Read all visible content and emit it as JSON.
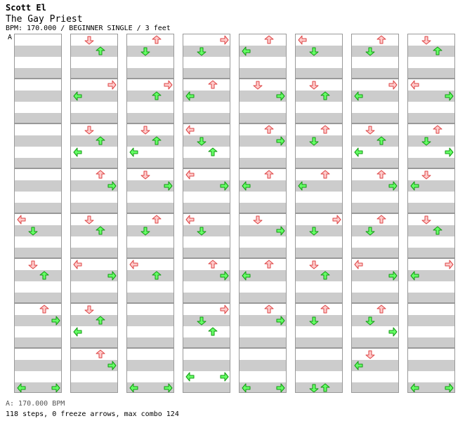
{
  "header": {
    "artist": "Scott El",
    "title": "The Gay Priest",
    "meta": "BPM: 170.000 / BEGINNER SINGLE / 3 feet"
  },
  "marker": "A",
  "footer": {
    "bpm_line": "A: 170.000 BPM",
    "stats_line": "118 steps, 0 freeze arrows, max combo 124"
  },
  "colors": {
    "red_fill": "#ffcccc",
    "red_stroke": "#dd4444",
    "green_fill": "#66ff66",
    "green_stroke": "#119911",
    "stripe": "#cccccc",
    "border": "#999999"
  },
  "chart_data": {
    "type": "table",
    "lanes": [
      "left",
      "down",
      "up",
      "right"
    ],
    "notes_description": "Step chart arranged in 8 columns of 8 measures; each note is [lane, row within measure 0-3, color]",
    "columns": [
      [
        [],
        [],
        [],
        [],
        [
          [
            "left",
            0,
            "red"
          ],
          [
            "down",
            1,
            "green"
          ]
        ],
        [
          [
            "down",
            0,
            "red"
          ],
          [
            "up",
            1,
            "green"
          ]
        ],
        [
          [
            "up",
            0,
            "red"
          ],
          [
            "right",
            1,
            "green"
          ]
        ],
        [
          [
            "left",
            3,
            "green"
          ],
          [
            "right",
            3,
            "green"
          ]
        ]
      ],
      [
        [
          [
            "down",
            0,
            "red"
          ],
          [
            "up",
            1,
            "green"
          ]
        ],
        [
          [
            "right",
            0,
            "red"
          ],
          [
            "left",
            1,
            "green"
          ]
        ],
        [
          [
            "down",
            0,
            "red"
          ],
          [
            "up",
            1,
            "green"
          ],
          [
            "left",
            2,
            "green"
          ]
        ],
        [
          [
            "up",
            0,
            "red"
          ],
          [
            "right",
            1,
            "green"
          ]
        ],
        [
          [
            "down",
            0,
            "red"
          ],
          [
            "up",
            1,
            "green"
          ]
        ],
        [
          [
            "left",
            0,
            "red"
          ],
          [
            "right",
            1,
            "green"
          ]
        ],
        [
          [
            "down",
            0,
            "red"
          ],
          [
            "up",
            1,
            "green"
          ],
          [
            "left",
            2,
            "green"
          ]
        ],
        [
          [
            "up",
            0,
            "red"
          ],
          [
            "right",
            1,
            "green"
          ]
        ]
      ],
      [
        [
          [
            "up",
            0,
            "red"
          ],
          [
            "down",
            1,
            "green"
          ]
        ],
        [
          [
            "right",
            0,
            "red"
          ],
          [
            "up",
            1,
            "green"
          ]
        ],
        [
          [
            "down",
            0,
            "red"
          ],
          [
            "up",
            1,
            "green"
          ],
          [
            "left",
            2,
            "green"
          ]
        ],
        [
          [
            "down",
            0,
            "red"
          ],
          [
            "right",
            1,
            "green"
          ]
        ],
        [
          [
            "up",
            0,
            "red"
          ],
          [
            "down",
            1,
            "green"
          ]
        ],
        [
          [
            "left",
            0,
            "red"
          ],
          [
            "up",
            1,
            "green"
          ]
        ],
        [],
        [
          [
            "left",
            3,
            "green"
          ],
          [
            "right",
            3,
            "green"
          ]
        ]
      ],
      [
        [
          [
            "right",
            0,
            "red"
          ],
          [
            "down",
            1,
            "green"
          ]
        ],
        [
          [
            "up",
            0,
            "red"
          ],
          [
            "left",
            1,
            "green"
          ]
        ],
        [
          [
            "left",
            0,
            "red"
          ],
          [
            "down",
            1,
            "green"
          ],
          [
            "up",
            2,
            "green"
          ]
        ],
        [
          [
            "left",
            0,
            "red"
          ],
          [
            "right",
            1,
            "green"
          ]
        ],
        [
          [
            "left",
            0,
            "red"
          ],
          [
            "down",
            1,
            "green"
          ]
        ],
        [
          [
            "up",
            0,
            "red"
          ],
          [
            "right",
            1,
            "green"
          ]
        ],
        [
          [
            "right",
            0,
            "red"
          ],
          [
            "down",
            1,
            "green"
          ],
          [
            "up",
            2,
            "green"
          ]
        ],
        [
          [
            "left",
            2,
            "green"
          ],
          [
            "right",
            2,
            "green"
          ]
        ]
      ],
      [
        [
          [
            "up",
            0,
            "red"
          ],
          [
            "left",
            1,
            "green"
          ]
        ],
        [
          [
            "down",
            0,
            "red"
          ],
          [
            "right",
            1,
            "green"
          ]
        ],
        [
          [
            "up",
            0,
            "red"
          ],
          [
            "right",
            1,
            "green"
          ]
        ],
        [
          [
            "up",
            0,
            "red"
          ],
          [
            "left",
            1,
            "green"
          ]
        ],
        [
          [
            "down",
            0,
            "red"
          ],
          [
            "right",
            1,
            "green"
          ]
        ],
        [
          [
            "up",
            0,
            "red"
          ],
          [
            "left",
            1,
            "green"
          ]
        ],
        [
          [
            "up",
            0,
            "red"
          ],
          [
            "right",
            1,
            "green"
          ]
        ],
        [
          [
            "left",
            3,
            "green"
          ],
          [
            "right",
            3,
            "green"
          ]
        ]
      ],
      [
        [
          [
            "left",
            0,
            "red"
          ],
          [
            "down",
            1,
            "green"
          ]
        ],
        [
          [
            "down",
            0,
            "red"
          ],
          [
            "up",
            1,
            "green"
          ]
        ],
        [
          [
            "up",
            0,
            "red"
          ],
          [
            "down",
            1,
            "green"
          ]
        ],
        [
          [
            "up",
            0,
            "red"
          ],
          [
            "left",
            1,
            "green"
          ]
        ],
        [
          [
            "right",
            0,
            "red"
          ],
          [
            "down",
            1,
            "green"
          ]
        ],
        [
          [
            "down",
            0,
            "red"
          ],
          [
            "up",
            1,
            "green"
          ]
        ],
        [
          [
            "up",
            0,
            "red"
          ],
          [
            "down",
            1,
            "green"
          ]
        ],
        [
          [
            "down",
            3,
            "green"
          ],
          [
            "up",
            3,
            "green"
          ]
        ]
      ],
      [
        [
          [
            "up",
            0,
            "red"
          ],
          [
            "down",
            1,
            "green"
          ]
        ],
        [
          [
            "right",
            0,
            "red"
          ],
          [
            "left",
            1,
            "green"
          ]
        ],
        [
          [
            "down",
            0,
            "red"
          ],
          [
            "up",
            1,
            "green"
          ],
          [
            "left",
            2,
            "green"
          ]
        ],
        [
          [
            "up",
            0,
            "red"
          ],
          [
            "right",
            1,
            "green"
          ]
        ],
        [
          [
            "up",
            0,
            "red"
          ],
          [
            "down",
            1,
            "green"
          ]
        ],
        [
          [
            "left",
            0,
            "red"
          ],
          [
            "right",
            1,
            "green"
          ]
        ],
        [
          [
            "up",
            0,
            "red"
          ],
          [
            "down",
            1,
            "green"
          ],
          [
            "right",
            2,
            "green"
          ]
        ],
        [
          [
            "down",
            0,
            "red"
          ],
          [
            "left",
            1,
            "green"
          ]
        ]
      ],
      [
        [
          [
            "down",
            0,
            "red"
          ],
          [
            "up",
            1,
            "green"
          ]
        ],
        [
          [
            "left",
            0,
            "red"
          ],
          [
            "right",
            1,
            "green"
          ]
        ],
        [
          [
            "up",
            0,
            "red"
          ],
          [
            "down",
            1,
            "green"
          ],
          [
            "right",
            2,
            "green"
          ]
        ],
        [
          [
            "down",
            0,
            "red"
          ],
          [
            "left",
            1,
            "green"
          ]
        ],
        [
          [
            "down",
            0,
            "red"
          ],
          [
            "up",
            1,
            "green"
          ]
        ],
        [
          [
            "right",
            0,
            "red"
          ],
          [
            "left",
            1,
            "green"
          ]
        ],
        [],
        [
          [
            "left",
            3,
            "green"
          ],
          [
            "right",
            3,
            "green"
          ]
        ]
      ]
    ]
  }
}
